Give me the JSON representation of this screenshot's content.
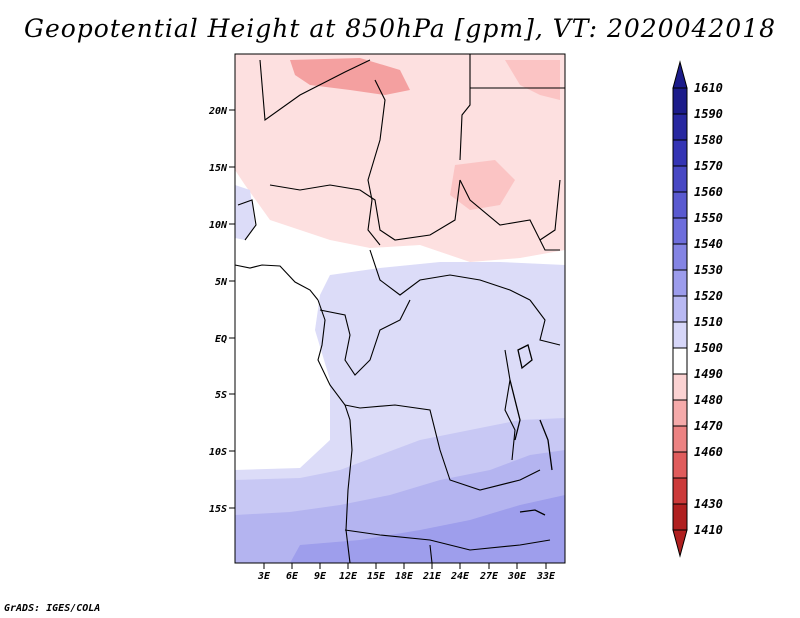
{
  "title": "Geopotential Height at 850hPa [gpm], VT: 2020042018",
  "credit": "GrADS: IGES/COLA",
  "map": {
    "lat_labels": [
      "20N",
      "15N",
      "10N",
      "5N",
      "EQ",
      "5S",
      "10S",
      "15S"
    ],
    "lon_labels": [
      "3E",
      "6E",
      "9E",
      "12E",
      "15E",
      "18E",
      "21E",
      "24E",
      "27E",
      "30E",
      "33E"
    ],
    "colors": {
      "ocean_white": "#ffffff",
      "light_pink": "#fde0e0",
      "pink": "#fbc4c4",
      "red_pink": "#f4a0a0",
      "lavender_1": "#dcdcf8",
      "lavender_2": "#c8c8f4",
      "lavender_3": "#b4b4f0",
      "lavender_4": "#9e9eec",
      "border": "#000000"
    }
  },
  "colorbar": {
    "labels": [
      "1610",
      "1590",
      "1580",
      "1570",
      "1560",
      "1550",
      "1540",
      "1530",
      "1520",
      "1510",
      "1500",
      "1490",
      "1480",
      "1470",
      "1460",
      "1430",
      "1410"
    ],
    "colors": [
      "#1c1c8a",
      "#2828a0",
      "#3434b4",
      "#4848c4",
      "#5a5ad0",
      "#6e6edc",
      "#8484e4",
      "#9c9cec",
      "#b8b8f2",
      "#d6d6f8",
      "#ffffff",
      "#fbd2d2",
      "#f5aaaa",
      "#ec8282",
      "#e05c5c",
      "#cc3a3a",
      "#b02020"
    ]
  }
}
